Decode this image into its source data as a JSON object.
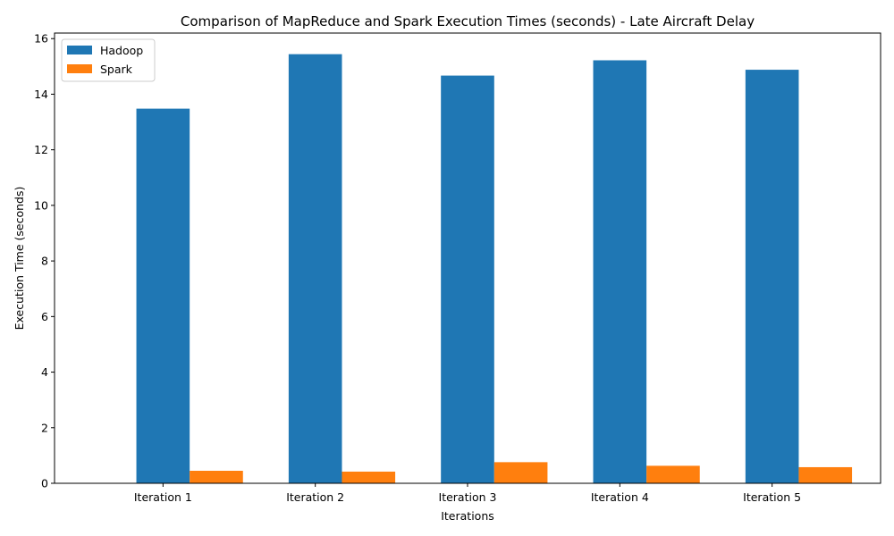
{
  "chart_data": {
    "type": "bar",
    "title": "Comparison of MapReduce and Spark Execution Times (seconds) - Late Aircraft Delay",
    "xlabel": "Iterations",
    "ylabel": "Execution Time (seconds)",
    "categories": [
      "Iteration 1",
      "Iteration 2",
      "Iteration 3",
      "Iteration 4",
      "Iteration 5"
    ],
    "series": [
      {
        "name": "Hadoop",
        "color": "#1f77b4",
        "values": [
          13.48,
          15.44,
          14.67,
          15.22,
          14.88
        ]
      },
      {
        "name": "Spark",
        "color": "#ff7f0e",
        "values": [
          0.45,
          0.42,
          0.76,
          0.63,
          0.58
        ]
      }
    ],
    "ylim": [
      0,
      16.2
    ],
    "yticks": [
      0,
      2,
      4,
      6,
      8,
      10,
      12,
      14,
      16
    ],
    "grid": false,
    "legend_position": "top-left"
  }
}
